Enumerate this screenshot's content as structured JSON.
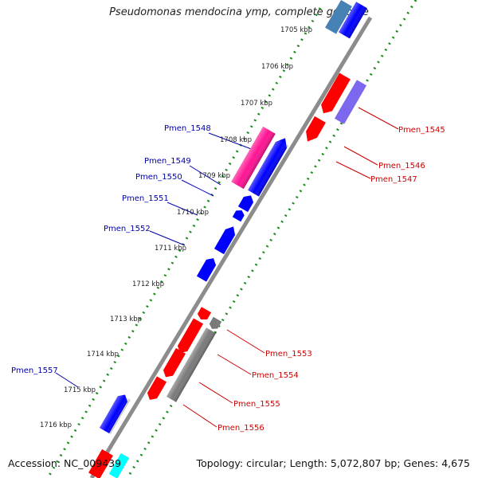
{
  "title": "Pseudomonas mendocina ymp, complete genome",
  "footer": {
    "accession": "Accession: NC_009439",
    "summary": "Topology: circular; Length: 5,072,807 bp; Genes: 4,675"
  },
  "colors": {
    "forward": "#ff0000",
    "reverse": "#0000ff",
    "grey_gene": "#7a7a7a",
    "magenta_gene": "#ff1493",
    "purple_gene": "#7b68ee",
    "steel_gene": "#4682b4",
    "cyan_gene": "#00ffff",
    "backbone": "#8c8c8c",
    "dotted_ring": "#1a8c1a",
    "label_left": "#0000aa",
    "label_right": "#cc0000"
  },
  "kbp_ticks": [
    "1705 kbp",
    "1706 kbp",
    "1707 kbp",
    "1708 kbp",
    "1709 kbp",
    "1710 kbp",
    "1711 kbp",
    "1712 kbp",
    "1713 kbp",
    "1714 kbp",
    "1715 kbp",
    "1716 kbp"
  ],
  "labels_left": [
    "Pmen_1548",
    "Pmen_1549",
    "Pmen_1550",
    "Pmen_1551",
    "Pmen_1552",
    "Pmen_1557"
  ],
  "labels_right": [
    "Pmen_1545",
    "Pmen_1546",
    "Pmen_1547",
    "Pmen_1553",
    "Pmen_1554",
    "Pmen_1555",
    "Pmen_1556"
  ]
}
